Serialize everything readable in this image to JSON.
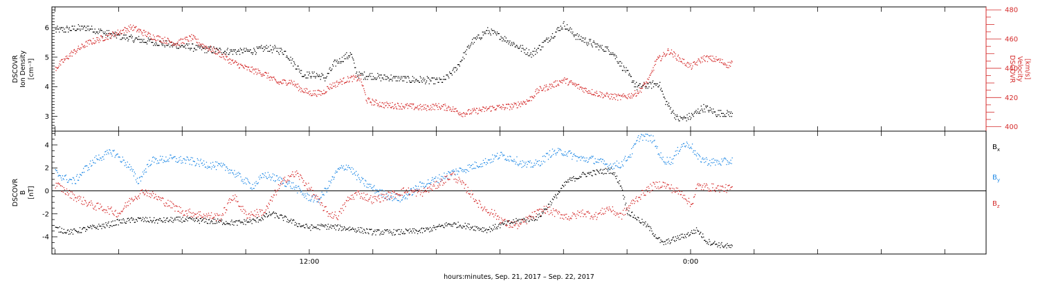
{
  "figure": {
    "xaxis_title": "hours:minutes, Sep. 21, 2017 – Sep. 22, 2017"
  },
  "chart_data": [
    {
      "type": "scatter",
      "title": "",
      "x_range_hours": [
        3.9,
        33.3
      ],
      "x_ticks": [
        {
          "hour": 12,
          "label": "12:00"
        },
        {
          "hour": 24,
          "label": "0:00"
        }
      ],
      "xlabel": "hours:minutes, Sep. 21, 2017 – Sep. 22, 2017",
      "ylabel_left": [
        "DSCOVR",
        "Ion Density",
        "[cm⁻³]"
      ],
      "ylim_left": [
        2.5,
        6.7
      ],
      "yticks_left": [
        3,
        4,
        5,
        6
      ],
      "ylabel_right": [
        "DSCOVR",
        "Velocity",
        "[km/s]"
      ],
      "ylim_right": [
        397,
        482
      ],
      "yticks_right": [
        400,
        420,
        440,
        460,
        480
      ],
      "series": [
        {
          "name": "Ion Density",
          "axis": "left",
          "color": "#000000",
          "keyframes": [
            [
              4.0,
              5.9
            ],
            [
              5.0,
              6.0
            ],
            [
              5.6,
              5.8
            ],
            [
              6.5,
              5.6
            ],
            [
              7.8,
              5.4
            ],
            [
              8.5,
              5.3
            ],
            [
              9.2,
              5.2
            ],
            [
              10.0,
              5.2
            ],
            [
              10.7,
              5.3
            ],
            [
              11.2,
              5.2
            ],
            [
              11.5,
              4.8
            ],
            [
              11.8,
              4.4
            ],
            [
              12.2,
              4.4
            ],
            [
              12.5,
              4.3
            ],
            [
              12.8,
              4.8
            ],
            [
              13.3,
              5.1
            ],
            [
              13.5,
              4.4
            ],
            [
              14.5,
              4.3
            ],
            [
              15.8,
              4.2
            ],
            [
              16.2,
              4.2
            ],
            [
              16.6,
              4.6
            ],
            [
              17.1,
              5.5
            ],
            [
              17.6,
              5.9
            ],
            [
              18.0,
              5.7
            ],
            [
              18.5,
              5.4
            ],
            [
              19.0,
              5.1
            ],
            [
              19.5,
              5.6
            ],
            [
              20.0,
              6.1
            ],
            [
              20.4,
              5.7
            ],
            [
              21.0,
              5.4
            ],
            [
              21.5,
              5.2
            ],
            [
              22.3,
              4.0
            ],
            [
              23.0,
              4.1
            ],
            [
              23.2,
              3.5
            ],
            [
              23.6,
              2.9
            ],
            [
              24.0,
              3.0
            ],
            [
              24.4,
              3.3
            ],
            [
              24.8,
              3.1
            ],
            [
              25.2,
              3.1
            ],
            [
              25.3,
              3.05
            ]
          ]
        },
        {
          "name": "Velocity",
          "axis": "right",
          "color": "#d42a2a",
          "keyframes": [
            [
              4.0,
              440
            ],
            [
              4.5,
              450
            ],
            [
              5.0,
              457
            ],
            [
              5.8,
              463
            ],
            [
              6.4,
              468
            ],
            [
              7.0,
              462
            ],
            [
              7.8,
              457
            ],
            [
              8.3,
              461
            ],
            [
              8.6,
              456
            ],
            [
              9.1,
              451
            ],
            [
              9.5,
              445
            ],
            [
              10.0,
              440
            ],
            [
              10.6,
              436
            ],
            [
              11.0,
              430
            ],
            [
              11.4,
              431
            ],
            [
              11.7,
              426
            ],
            [
              12.0,
              423
            ],
            [
              12.4,
              423
            ],
            [
              12.6,
              427
            ],
            [
              13.0,
              431
            ],
            [
              13.3,
              433
            ],
            [
              13.6,
              433
            ],
            [
              13.8,
              418
            ],
            [
              14.3,
              415
            ],
            [
              15.0,
              414
            ],
            [
              15.6,
              413
            ],
            [
              16.0,
              414
            ],
            [
              16.4,
              413
            ],
            [
              16.8,
              409
            ],
            [
              17.3,
              411
            ],
            [
              17.8,
              413
            ],
            [
              18.4,
              414
            ],
            [
              18.9,
              418
            ],
            [
              19.2,
              425
            ],
            [
              19.6,
              428
            ],
            [
              20.0,
              432
            ],
            [
              20.3,
              429
            ],
            [
              20.7,
              425
            ],
            [
              21.0,
              423
            ],
            [
              21.4,
              421
            ],
            [
              21.8,
              420
            ],
            [
              22.2,
              422
            ],
            [
              22.4,
              425
            ],
            [
              22.7,
              433
            ],
            [
              22.9,
              445
            ],
            [
              23.1,
              448
            ],
            [
              23.3,
              452
            ],
            [
              23.6,
              447
            ],
            [
              24.0,
              441
            ],
            [
              24.4,
              447
            ],
            [
              24.8,
              446
            ],
            [
              25.2,
              442
            ],
            [
              25.3,
              445
            ]
          ]
        }
      ]
    },
    {
      "type": "scatter",
      "title": "",
      "x_range_hours": [
        3.9,
        33.3
      ],
      "ylabel_left": [
        "DSCOVR",
        "B",
        "[nT]"
      ],
      "ylim_left": [
        -5.5,
        5.2
      ],
      "yticks_left": [
        -4,
        -2,
        0,
        2,
        4
      ],
      "zero_line": true,
      "series": [
        {
          "name": "Bx",
          "color": "#000000",
          "keyframes": [
            [
              4.0,
              -3.3
            ],
            [
              4.5,
              -3.6
            ],
            [
              5.0,
              -3.3
            ],
            [
              5.6,
              -3.0
            ],
            [
              6.0,
              -2.7
            ],
            [
              6.6,
              -2.5
            ],
            [
              7.2,
              -2.6
            ],
            [
              8.0,
              -2.5
            ],
            [
              8.6,
              -2.6
            ],
            [
              9.2,
              -2.7
            ],
            [
              9.7,
              -2.8
            ],
            [
              10.3,
              -2.6
            ],
            [
              10.8,
              -2.0
            ],
            [
              11.2,
              -2.4
            ],
            [
              11.7,
              -3.0
            ],
            [
              12.0,
              -3.2
            ],
            [
              12.5,
              -3.1
            ],
            [
              12.9,
              -3.2
            ],
            [
              13.3,
              -3.3
            ],
            [
              14.0,
              -3.6
            ],
            [
              14.8,
              -3.6
            ],
            [
              15.5,
              -3.5
            ],
            [
              16.0,
              -3.2
            ],
            [
              16.4,
              -2.9
            ],
            [
              16.8,
              -3.0
            ],
            [
              17.2,
              -3.2
            ],
            [
              17.6,
              -3.4
            ],
            [
              18.0,
              -3.0
            ],
            [
              18.4,
              -2.7
            ],
            [
              18.8,
              -2.5
            ],
            [
              19.2,
              -2.3
            ],
            [
              19.6,
              -1.0
            ],
            [
              20.1,
              0.8
            ],
            [
              20.6,
              1.4
            ],
            [
              21.0,
              1.6
            ],
            [
              21.5,
              1.8
            ],
            [
              21.8,
              0.5
            ],
            [
              22.0,
              -1.8
            ],
            [
              22.3,
              -2.4
            ],
            [
              22.6,
              -3.0
            ],
            [
              22.8,
              -3.6
            ],
            [
              23.1,
              -4.6
            ],
            [
              23.5,
              -4.2
            ],
            [
              23.9,
              -3.8
            ],
            [
              24.2,
              -3.4
            ],
            [
              24.5,
              -4.4
            ],
            [
              24.9,
              -4.7
            ],
            [
              25.3,
              -4.9
            ]
          ]
        },
        {
          "name": "By",
          "color": "#1e88e5",
          "keyframes": [
            [
              4.0,
              1.6
            ],
            [
              4.3,
              1.1
            ],
            [
              4.6,
              0.8
            ],
            [
              4.9,
              1.8
            ],
            [
              5.3,
              2.8
            ],
            [
              5.8,
              3.4
            ],
            [
              6.3,
              2.2
            ],
            [
              6.6,
              0.8
            ],
            [
              7.0,
              2.6
            ],
            [
              7.6,
              2.8
            ],
            [
              8.2,
              2.6
            ],
            [
              8.8,
              2.3
            ],
            [
              9.4,
              2.0
            ],
            [
              9.8,
              1.2
            ],
            [
              10.2,
              0.4
            ],
            [
              10.6,
              1.4
            ],
            [
              11.0,
              1.0
            ],
            [
              11.5,
              0.4
            ],
            [
              11.9,
              -0.5
            ],
            [
              12.3,
              -0.8
            ],
            [
              12.6,
              0.5
            ],
            [
              12.9,
              1.8
            ],
            [
              13.2,
              2.2
            ],
            [
              13.6,
              0.9
            ],
            [
              14.0,
              0.2
            ],
            [
              14.4,
              -0.4
            ],
            [
              14.9,
              -0.7
            ],
            [
              15.5,
              0.5
            ],
            [
              16.0,
              1.0
            ],
            [
              16.5,
              1.6
            ],
            [
              17.0,
              2.0
            ],
            [
              17.5,
              2.5
            ],
            [
              18.0,
              3.1
            ],
            [
              18.4,
              2.8
            ],
            [
              18.8,
              2.2
            ],
            [
              19.2,
              2.4
            ],
            [
              19.6,
              3.3
            ],
            [
              20.0,
              3.4
            ],
            [
              20.5,
              2.8
            ],
            [
              21.0,
              2.7
            ],
            [
              21.4,
              2.2
            ],
            [
              21.8,
              2.3
            ],
            [
              22.1,
              3.2
            ],
            [
              22.4,
              4.8
            ],
            [
              22.8,
              4.5
            ],
            [
              23.1,
              2.7
            ],
            [
              23.4,
              2.6
            ],
            [
              23.7,
              4.0
            ],
            [
              24.0,
              4.0
            ],
            [
              24.2,
              2.9
            ],
            [
              24.6,
              2.5
            ],
            [
              25.0,
              2.5
            ],
            [
              25.3,
              2.6
            ]
          ]
        },
        {
          "name": "Bz",
          "color": "#d42a2a",
          "keyframes": [
            [
              4.0,
              0.6
            ],
            [
              4.4,
              -0.2
            ],
            [
              4.8,
              -0.8
            ],
            [
              5.2,
              -1.3
            ],
            [
              5.6,
              -1.6
            ],
            [
              6.0,
              -2.0
            ],
            [
              6.4,
              -0.7
            ],
            [
              6.8,
              0.0
            ],
            [
              7.2,
              -0.6
            ],
            [
              7.6,
              -1.2
            ],
            [
              8.0,
              -1.8
            ],
            [
              8.6,
              -2.1
            ],
            [
              9.2,
              -2.3
            ],
            [
              9.6,
              -0.4
            ],
            [
              10.0,
              -2.1
            ],
            [
              10.6,
              -1.8
            ],
            [
              11.0,
              0.2
            ],
            [
              11.3,
              1.2
            ],
            [
              11.6,
              1.5
            ],
            [
              12.0,
              0.2
            ],
            [
              12.3,
              -1.0
            ],
            [
              12.6,
              -2.0
            ],
            [
              12.9,
              -2.2
            ],
            [
              13.2,
              -0.8
            ],
            [
              13.5,
              -0.2
            ],
            [
              14.0,
              -0.8
            ],
            [
              14.5,
              -0.4
            ],
            [
              15.0,
              0.0
            ],
            [
              15.5,
              -0.2
            ],
            [
              16.0,
              0.5
            ],
            [
              16.5,
              1.4
            ],
            [
              17.0,
              0.0
            ],
            [
              17.4,
              -1.4
            ],
            [
              17.8,
              -2.0
            ],
            [
              18.2,
              -2.9
            ],
            [
              18.6,
              -3.0
            ],
            [
              19.0,
              -2.2
            ],
            [
              19.4,
              -1.6
            ],
            [
              19.8,
              -2.0
            ],
            [
              20.2,
              -2.3
            ],
            [
              20.6,
              -1.9
            ],
            [
              21.0,
              -2.2
            ],
            [
              21.4,
              -1.5
            ],
            [
              21.8,
              -2.2
            ],
            [
              22.2,
              -0.9
            ],
            [
              22.5,
              -0.2
            ],
            [
              22.8,
              0.4
            ],
            [
              23.1,
              0.6
            ],
            [
              23.4,
              0.2
            ],
            [
              23.8,
              -0.4
            ],
            [
              24.0,
              -1.3
            ],
            [
              24.2,
              0.4
            ],
            [
              24.6,
              0.3
            ],
            [
              25.0,
              0.2
            ],
            [
              25.3,
              0.2
            ]
          ]
        }
      ],
      "legend": [
        {
          "base": "B",
          "sub": "x",
          "color": "#000000"
        },
        {
          "base": "B",
          "sub": "y",
          "color": "#1e88e5"
        },
        {
          "base": "B",
          "sub": "z",
          "color": "#d42a2a"
        }
      ]
    }
  ]
}
